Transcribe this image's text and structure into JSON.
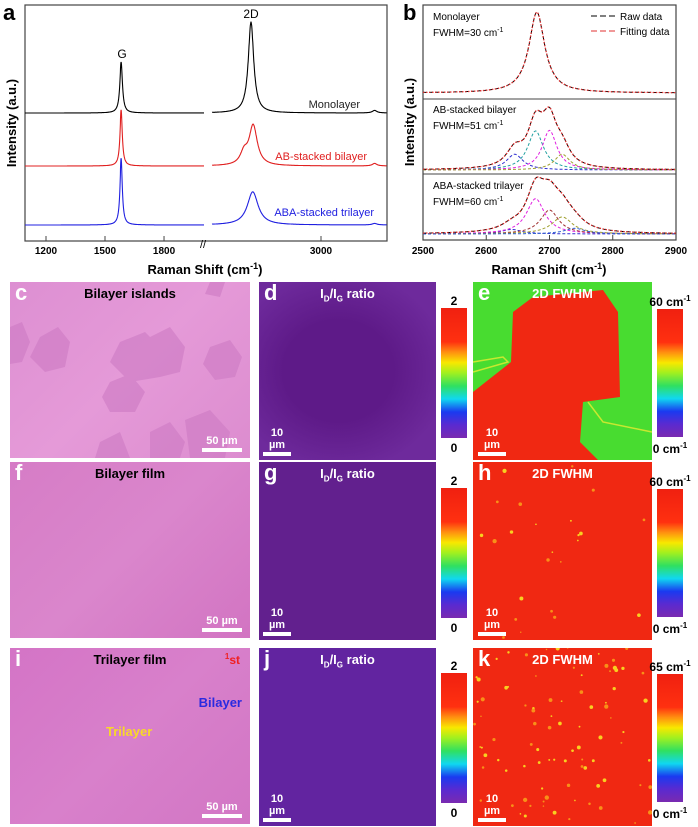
{
  "chart_data": [
    {
      "panel": "a",
      "type": "line",
      "xlabel": "Raman Shift (cm",
      "xlabel_sup": "-1",
      "xlabel_end": ")",
      "ylabel": "Intensity (a.u.)",
      "x_ticks_left": [
        1200,
        1500,
        1800
      ],
      "x_ticks_right": [
        3000
      ],
      "x_range_left": [
        1093,
        2003
      ],
      "x_range_right": [
        2502,
        3300
      ],
      "axis_break": "//",
      "peak_labels": [
        "G",
        "2D"
      ],
      "series": [
        {
          "name": "Monolayer",
          "color": "#000000",
          "peaks": [
            {
              "center": 1582,
              "fwhm": 16,
              "height": 1.0
            },
            {
              "center": 2680,
              "fwhm": 30,
              "height": 1.78
            },
            {
              "center": 3245,
              "fwhm": 25,
              "height": 0.05
            }
          ]
        },
        {
          "name": "AB-stacked bilayer",
          "color": "#e02020",
          "peaks": [
            {
              "center": 1582,
              "fwhm": 14,
              "height": 1.1
            },
            {
              "center": 2690,
              "fwhm": 45,
              "height": 0.78
            },
            {
              "center": 2648,
              "fwhm": 40,
              "height": 0.22
            },
            {
              "center": 3245,
              "fwhm": 25,
              "height": 0.05
            }
          ]
        },
        {
          "name": "ABA-stacked trilayer",
          "color": "#2020e0",
          "peaks": [
            {
              "center": 1582,
              "fwhm": 14,
              "height": 1.31
            },
            {
              "center": 2688,
              "fwhm": 60,
              "height": 0.65
            },
            {
              "center": 3245,
              "fwhm": 25,
              "height": 0.03
            }
          ]
        }
      ]
    },
    {
      "panel": "b",
      "type": "line",
      "xlabel": "Raman Shift (cm",
      "xlabel_sup": "-1",
      "xlabel_end": ")",
      "ylabel": "Intensity (a.u.)",
      "xlim": [
        2500,
        2900
      ],
      "x_ticks": [
        2500,
        2600,
        2700,
        2800,
        2900
      ],
      "legend": {
        "position": "top-right",
        "entries": [
          {
            "label": "Raw data",
            "color": "#000000"
          },
          {
            "label": "Fitting data",
            "color": "#e03030"
          }
        ]
      },
      "subpanels": [
        {
          "label": "Monolayer",
          "fwhm_text": "FWHM=30 cm",
          "components": [
            {
              "center": 2680,
              "fwhm": 30,
              "height": 1.0,
              "color": "#e03030"
            }
          ]
        },
        {
          "label": "AB-stacked bilayer",
          "fwhm_text": "FWHM=51 cm",
          "components": [
            {
              "center": 2645,
              "fwhm": 32,
              "height": 0.25,
              "color": "#3030d0"
            },
            {
              "center": 2678,
              "fwhm": 30,
              "height": 0.62,
              "color": "#20a0a0"
            },
            {
              "center": 2700,
              "fwhm": 28,
              "height": 0.63,
              "color": "#e020e0"
            },
            {
              "center": 2720,
              "fwhm": 30,
              "height": 0.25,
              "color": "#a0a030"
            }
          ]
        },
        {
          "label": "ABA-stacked trilayer",
          "fwhm_text": "FWHM=60 cm",
          "components": [
            {
              "center": 2640,
              "fwhm": 40,
              "height": 0.08,
              "color": "#3030d0"
            },
            {
              "center": 2678,
              "fwhm": 35,
              "height": 0.62,
              "color": "#e020e0"
            },
            {
              "center": 2700,
              "fwhm": 35,
              "height": 0.42,
              "color": "#a03030"
            },
            {
              "center": 2720,
              "fwhm": 40,
              "height": 0.3,
              "color": "#a0a030"
            },
            {
              "center": 2740,
              "fwhm": 40,
              "height": 0.1,
              "color": "#3060d0"
            }
          ]
        }
      ]
    }
  ],
  "panels": {
    "a": "a",
    "b": "b",
    "c": {
      "label": "c",
      "title": "Bilayer islands",
      "scale": "50 µm"
    },
    "d": {
      "label": "d",
      "title_main": "I",
      "sub1": "D",
      "mid": "/I",
      "sub2": "G",
      "title_end": " ratio",
      "scale": "10 µm",
      "cb_top": "2",
      "cb_bottom": "0"
    },
    "e": {
      "label": "e",
      "title": "2D FWHM",
      "scale": "10 µm",
      "cb_top": "60 cm",
      "cb_bottom": "0 cm",
      "sup": "-1"
    },
    "f": {
      "label": "f",
      "title": "Bilayer film",
      "scale": "50 µm"
    },
    "g": {
      "label": "g",
      "title_main": "I",
      "sub1": "D",
      "mid": "/I",
      "sub2": "G",
      "title_end": " ratio",
      "scale": "10 µm",
      "cb_top": "2",
      "cb_bottom": "0"
    },
    "h": {
      "label": "h",
      "title": "2D FWHM",
      "scale": "10 µm",
      "cb_top": "60 cm",
      "cb_bottom": "0 cm",
      "sup": "-1"
    },
    "i": {
      "label": "i",
      "title": "Trilayer film",
      "scale": "50 µm",
      "tag_first_sup": "1",
      "tag_first": "st",
      "tag_bilayer": "Bilayer",
      "tag_trilayer": "Trilayer"
    },
    "j": {
      "label": "j",
      "title_main": "I",
      "sub1": "D",
      "mid": "/I",
      "sub2": "G",
      "title_end": " ratio",
      "scale": "10 µm",
      "cb_top": "2",
      "cb_bottom": "0"
    },
    "k": {
      "label": "k",
      "title": "2D FWHM",
      "scale": "10 µm",
      "cb_top": "65 cm",
      "cb_bottom": "0 cm",
      "sup": "-1"
    }
  }
}
